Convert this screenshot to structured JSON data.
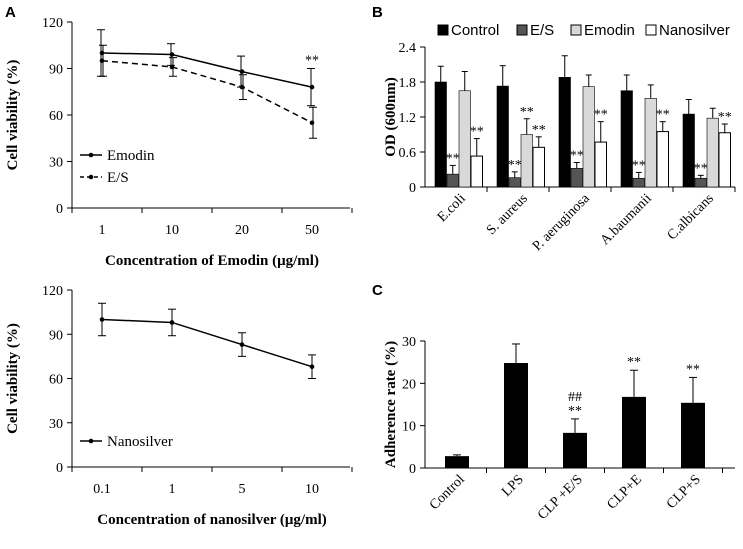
{
  "chart_data": [
    {
      "id": "A1",
      "panel_label": "A",
      "type": "line",
      "categories": [
        "1",
        "10",
        "20",
        "50"
      ],
      "series": [
        {
          "name": "Emodin",
          "values": [
            100,
            99,
            88,
            78
          ],
          "errors": [
            15,
            7,
            10,
            12
          ],
          "style": "solid",
          "significance": [
            "",
            "",
            "",
            "**"
          ]
        },
        {
          "name": "E/S",
          "values": [
            95,
            91,
            78,
            55
          ],
          "errors": [
            10,
            6,
            8,
            10
          ],
          "style": "dashed",
          "significance": [
            "",
            "",
            "",
            ""
          ]
        }
      ],
      "xlabel": "Concentration of Emodin (μg/ml)",
      "ylabel": "Cell viability (%)",
      "ylim": [
        0,
        120
      ],
      "yticks": [
        "0",
        "30",
        "60",
        "90",
        "120"
      ],
      "legend_position": "center-left"
    },
    {
      "id": "A2",
      "panel_label": "",
      "type": "line",
      "categories": [
        "0.1",
        "1",
        "5",
        "10"
      ],
      "series": [
        {
          "name": "Nanosilver",
          "values": [
            100,
            98,
            83,
            68
          ],
          "errors": [
            11,
            9,
            8,
            8
          ],
          "style": "solid"
        }
      ],
      "xlabel": "Concentration of nanosilver (μg/ml)",
      "ylabel": "Cell viability (%)",
      "ylim": [
        0,
        120
      ],
      "yticks": [
        "0",
        "30",
        "60",
        "90",
        "120"
      ],
      "legend_position": "bottom-left"
    },
    {
      "id": "B",
      "panel_label": "B",
      "type": "bar",
      "categories": [
        "E.coli",
        "S. aureus",
        "P. aeruginosa",
        "A.baumanii",
        "C.albicans"
      ],
      "series": [
        {
          "name": "Control",
          "color": "#000000",
          "values": [
            1.8,
            1.73,
            1.88,
            1.65,
            1.25
          ],
          "errors": [
            0.27,
            0.35,
            0.37,
            0.27,
            0.25
          ],
          "significance": [
            "",
            "",
            "",
            "",
            ""
          ]
        },
        {
          "name": "E/S",
          "color": "#555555",
          "values": [
            0.22,
            0.16,
            0.32,
            0.15,
            0.15
          ],
          "errors": [
            0.15,
            0.1,
            0.1,
            0.1,
            0.05
          ],
          "significance": [
            "**",
            "**",
            "**",
            "**",
            "**"
          ]
        },
        {
          "name": "Emodin",
          "color": "#d9d9d9",
          "values": [
            1.65,
            0.9,
            1.72,
            1.52,
            1.18
          ],
          "errors": [
            0.33,
            0.27,
            0.2,
            0.23,
            0.17
          ],
          "significance": [
            "",
            "**",
            "",
            "",
            ""
          ]
        },
        {
          "name": "Nanosilver",
          "color": "#ffffff",
          "values": [
            0.53,
            0.68,
            0.77,
            0.95,
            0.93
          ],
          "errors": [
            0.3,
            0.18,
            0.35,
            0.17,
            0.15
          ],
          "significance": [
            "**",
            "**",
            "**",
            "**",
            "**"
          ]
        }
      ],
      "ylabel": "OD (600nm)",
      "ylim": [
        0,
        2.4
      ],
      "yticks": [
        "0",
        "0.6",
        "1.2",
        "1.8",
        "2.4"
      ],
      "legend_position": "top"
    },
    {
      "id": "C",
      "panel_label": "C",
      "type": "bar",
      "categories": [
        "Control",
        "LPS",
        "CLP +E/S",
        "CLP+E",
        "CLP+S"
      ],
      "values": [
        2.8,
        24.8,
        8.3,
        16.8,
        15.4
      ],
      "errors": [
        0.3,
        4.5,
        3.3,
        6.3,
        6.0
      ],
      "significance": [
        "",
        "",
        "**",
        "**",
        "**"
      ],
      "significance_extra": [
        "",
        "",
        "##",
        "",
        ""
      ],
      "ylabel": "Adherence rate (%)",
      "ylim": [
        0,
        30
      ],
      "yticks": [
        "0",
        "10",
        "20",
        "30"
      ]
    }
  ]
}
